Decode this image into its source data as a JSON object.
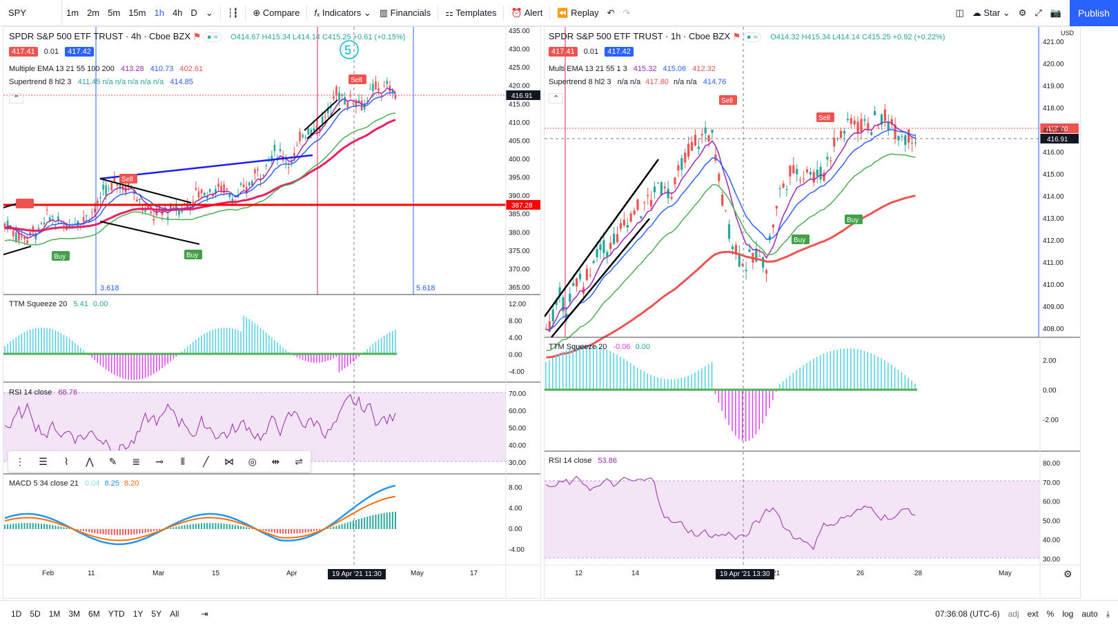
{
  "toolbar": {
    "symbol": "SPY",
    "intervals": [
      "1m",
      "2m",
      "5m",
      "15m",
      "1h",
      "4h",
      "D"
    ],
    "active_interval": "1h",
    "compare": "Compare",
    "indicators": "Indicators",
    "financials": "Financials",
    "templates": "Templates",
    "alert": "Alert",
    "replay": "Replay",
    "star": "Star",
    "publish": "Publish"
  },
  "left": {
    "title": "SPDR S&P 500 ETF TRUST · 4h · Cboe BZX",
    "ohlc": "O414.67 H415.34 L414.14 C415.25 +0.61 (+0.15%)",
    "bid": "417.41",
    "spread": "0.01",
    "ask": "417.42",
    "ema_label": "Multiple EMA 13 21 55 100 200",
    "ema_values": [
      "413.28",
      "410.73",
      "402.61"
    ],
    "supertrend_label": "Supertrend 8 hl2 3",
    "supertrend_values": "411.45  n/a  n/a  n/a  n/a  n/a",
    "supertrend_last": "414.85",
    "price_tag": "416.91",
    "red_line_tag": "387.28",
    "fib_left": "3.618",
    "fib_right": "5.618",
    "ttm_label": "TTM Squeeze 20",
    "ttm_v1": "5.41",
    "ttm_v2": "0.00",
    "rsi_label": "RSI 14 close",
    "rsi_value": "68.76",
    "macd_label": "MACD 5 34 close 21",
    "macd_v1": "0.04",
    "macd_v2": "8.25",
    "macd_v3": "8.20",
    "date_tag": "19 Apr '21  11:30",
    "x_ticks": [
      "Feb",
      "11",
      "Mar",
      "15",
      "Apr",
      "May",
      "17"
    ],
    "price_axis": [
      "435.00",
      "430.00",
      "425.00",
      "420.00",
      "415.00",
      "410.00",
      "405.00",
      "400.00",
      "395.00",
      "390.00",
      "385.00",
      "380.00",
      "375.00",
      "370.00",
      "365.00"
    ],
    "ttm_axis": [
      "12.00",
      "8.00",
      "4.00",
      "0.00",
      "-4.00"
    ],
    "rsi_axis": [
      "70.00",
      "60.00",
      "50.00",
      "40.00",
      "30.00"
    ],
    "macd_axis": [
      "8.00",
      "4.00",
      "0.00",
      "-4.00"
    ]
  },
  "right": {
    "title": "SPDR S&P 500 ETF TRUST · 1h · Cboe BZX",
    "ohlc": "O414.32 H415.34 L414.14 C415.25 +0.92 (+0.22%)",
    "bid": "417.41",
    "spread": "0.01",
    "ask": "417.42",
    "ema_label": "Multi EMA 13 21 55 1 3",
    "ema_values": [
      "415.32",
      "415.06",
      "412.32"
    ],
    "supertrend_label": "Supertrend 8 hl2 3",
    "supertrend_values": "n/a  n/a",
    "supertrend_mid": "417.80",
    "supertrend_rest": "n/a  n/a",
    "supertrend_last": "414.76",
    "price_tag": "417.40",
    "cross_tag": "416.91",
    "ttm_label": "TTM Squeeze 20",
    "ttm_v1": "-0.06",
    "ttm_v2": "0.00",
    "rsi_label": "RSI 14 close",
    "rsi_value": "53.86",
    "date_tag": "19 Apr '21  13:30",
    "x_ticks": [
      "12",
      "14",
      "21",
      "26",
      "28",
      "May"
    ],
    "price_axis": [
      "421.00",
      "420.00",
      "419.00",
      "418.00",
      "417.00",
      "416.00",
      "415.00",
      "414.00",
      "413.00",
      "412.00",
      "411.00",
      "410.00",
      "409.00",
      "408.00"
    ],
    "currency": "USD",
    "ttm_axis": [
      "2.00",
      "0.00",
      "-2.00"
    ],
    "rsi_axis": [
      "80.00",
      "70.00",
      "60.00",
      "50.00",
      "40.00",
      "30.00"
    ]
  },
  "bottombar": {
    "ranges": [
      "1D",
      "5D",
      "1M",
      "3M",
      "6M",
      "YTD",
      "1Y",
      "5Y",
      "All"
    ],
    "time": "07:36:08 (UTC-6)",
    "adj": "adj",
    "ext": "ext",
    "pct": "%",
    "log": "log",
    "auto": "auto"
  },
  "colors": {
    "up": "#26a69a",
    "down": "#ef5350",
    "accent": "#2962ff",
    "ema_fast": "#9c27b0",
    "ema_mid": "#2962ff",
    "ema_slow": "#ef5350",
    "rsi_fill": "#f3e5f5"
  }
}
